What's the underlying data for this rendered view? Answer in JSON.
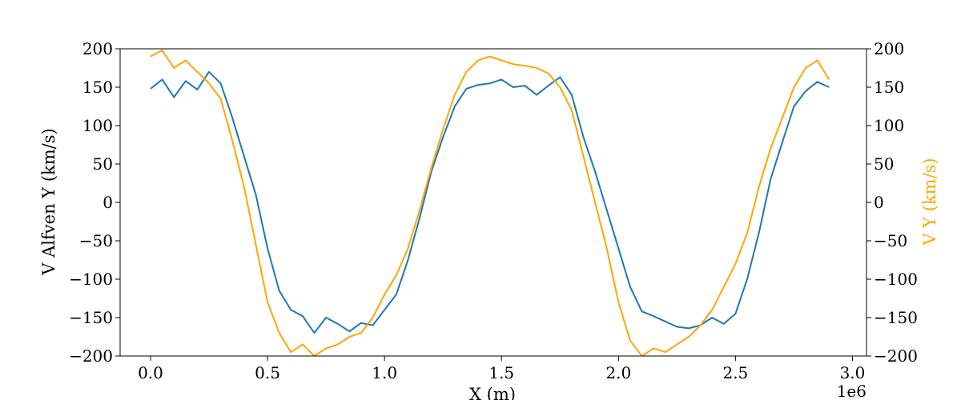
{
  "chart_data": {
    "type": "line",
    "title": "",
    "xlabel": "X  (m)",
    "x_offset_label": "1e6",
    "ylabel_left": "V Alfven Y  (km/s)",
    "ylabel_right": "V Y  (km/s)",
    "xlim": [
      -0.13,
      3.06
    ],
    "ylim_left": [
      -200,
      200
    ],
    "ylim_right": [
      -200,
      200
    ],
    "x_ticks": [
      0.0,
      0.5,
      1.0,
      1.5,
      2.0,
      2.5,
      3.0
    ],
    "x_tick_labels": [
      "0.0",
      "0.5",
      "1.0",
      "1.5",
      "2.0",
      "2.5",
      "3.0"
    ],
    "y_ticks": [
      200,
      150,
      100,
      50,
      0,
      -50,
      -100,
      -150,
      -200
    ],
    "y_tick_labels_left": [
      "200",
      "150",
      "100",
      "50",
      "0",
      "−50",
      "−100",
      "−150",
      "−200"
    ],
    "y_tick_labels_right": [
      "200",
      "150",
      "100",
      "50",
      "0",
      "−50",
      "−100",
      "−150",
      "−200"
    ],
    "grid": false,
    "series": [
      {
        "axis": "left",
        "color": "#1f77b4",
        "x": [
          0.0,
          0.05,
          0.1,
          0.15,
          0.2,
          0.25,
          0.3,
          0.35,
          0.4,
          0.45,
          0.5,
          0.55,
          0.6,
          0.65,
          0.7,
          0.75,
          0.8,
          0.85,
          0.9,
          0.95,
          1.0,
          1.05,
          1.1,
          1.15,
          1.2,
          1.25,
          1.3,
          1.35,
          1.4,
          1.45,
          1.5,
          1.55,
          1.6,
          1.65,
          1.7,
          1.75,
          1.8,
          1.85,
          1.9,
          1.95,
          2.0,
          2.05,
          2.1,
          2.15,
          2.2,
          2.25,
          2.3,
          2.35,
          2.4,
          2.45,
          2.5,
          2.55,
          2.6,
          2.65,
          2.7,
          2.75,
          2.8,
          2.85,
          2.9
        ],
        "y": [
          148,
          160,
          137,
          158,
          147,
          170,
          155,
          110,
          60,
          10,
          -60,
          -115,
          -140,
          -148,
          -170,
          -150,
          -158,
          -168,
          -157,
          -160,
          -140,
          -120,
          -75,
          -20,
          40,
          85,
          125,
          148,
          153,
          155,
          160,
          150,
          152,
          140,
          152,
          163,
          140,
          85,
          40,
          -10,
          -60,
          -110,
          -142,
          -148,
          -155,
          -162,
          -164,
          -160,
          -150,
          -158,
          -145,
          -100,
          -40,
          30,
          78,
          125,
          145,
          157,
          150
        ]
      },
      {
        "axis": "right",
        "color": "#ffa500",
        "x": [
          0.0,
          0.05,
          0.1,
          0.15,
          0.2,
          0.25,
          0.3,
          0.35,
          0.4,
          0.45,
          0.5,
          0.55,
          0.6,
          0.65,
          0.7,
          0.75,
          0.8,
          0.85,
          0.9,
          0.95,
          1.0,
          1.05,
          1.1,
          1.15,
          1.2,
          1.25,
          1.3,
          1.35,
          1.4,
          1.45,
          1.5,
          1.55,
          1.6,
          1.65,
          1.7,
          1.75,
          1.8,
          1.85,
          1.9,
          1.95,
          2.0,
          2.05,
          2.1,
          2.15,
          2.2,
          2.25,
          2.3,
          2.35,
          2.4,
          2.45,
          2.5,
          2.55,
          2.6,
          2.65,
          2.7,
          2.75,
          2.8,
          2.85,
          2.9
        ],
        "y": [
          190,
          198,
          175,
          185,
          170,
          155,
          135,
          80,
          20,
          -55,
          -130,
          -170,
          -195,
          -185,
          -200,
          -190,
          -185,
          -175,
          -170,
          -150,
          -120,
          -95,
          -60,
          -10,
          45,
          95,
          140,
          170,
          185,
          190,
          185,
          180,
          178,
          175,
          168,
          150,
          120,
          60,
          0,
          -60,
          -130,
          -180,
          -200,
          -190,
          -195,
          -185,
          -175,
          -160,
          -140,
          -110,
          -80,
          -40,
          20,
          70,
          110,
          150,
          175,
          185,
          160
        ]
      }
    ]
  }
}
